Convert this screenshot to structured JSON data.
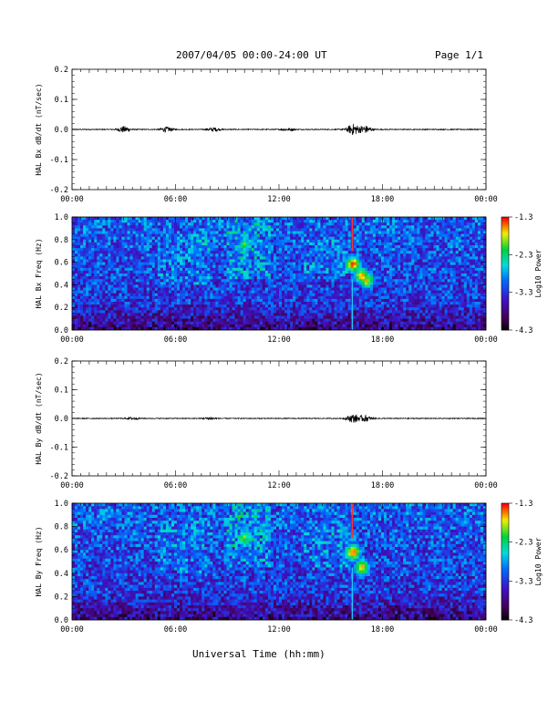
{
  "header": {
    "title": "2007/04/05  00:00-24:00 UT",
    "page": "Page 1/1"
  },
  "footer": {
    "xlabel": "Universal Time (hh:mm)"
  },
  "chart_data": [
    {
      "type": "line",
      "ylabel": "HAL Bx dB/dt (nT/sec)",
      "ylim": [
        -0.2,
        0.2
      ],
      "yticks": [
        "0.2",
        "0.1",
        "0.0",
        "-0.1",
        "-0.2"
      ],
      "xticks": [
        "00:00",
        "06:00",
        "12:00",
        "18:00",
        "00:00"
      ],
      "baseline": 0.0,
      "bursts": [
        {
          "t": 3.0,
          "amp": 0.01
        },
        {
          "t": 5.5,
          "amp": 0.008
        },
        {
          "t": 8.2,
          "amp": 0.006
        },
        {
          "t": 12.5,
          "amp": 0.004
        },
        {
          "t": 16.3,
          "amp": 0.018
        },
        {
          "t": 17.0,
          "amp": 0.012
        }
      ]
    },
    {
      "type": "heatmap",
      "ylabel": "HAL Bx Freq (Hz)",
      "ylim": [
        0.0,
        1.0
      ],
      "yticks": [
        "1.0",
        "0.8",
        "0.6",
        "0.4",
        "0.2",
        "0.0"
      ],
      "xticks": [
        "00:00",
        "06:00",
        "12:00",
        "18:00",
        "00:00"
      ],
      "colorbar": {
        "label": "Log10 Power",
        "ticks": [
          "-1.3",
          "-2.3",
          "-3.3",
          "-4.3"
        ],
        "range": [
          -4.3,
          -1.3
        ]
      },
      "features": [
        {
          "t": 16.3,
          "f": 0.58,
          "power": -1.4
        },
        {
          "t": 16.8,
          "f": 0.48,
          "power": -1.6
        },
        {
          "t": 17.1,
          "f": 0.44,
          "power": -1.7
        },
        {
          "t": 10.0,
          "f": 0.75,
          "power": -2.4
        },
        {
          "t": 7.0,
          "f": 0.7,
          "power": -2.9
        }
      ]
    },
    {
      "type": "line",
      "ylabel": "HAL By dB/dt (nT/sec)",
      "ylim": [
        -0.2,
        0.2
      ],
      "yticks": [
        "0.2",
        "0.1",
        "0.0",
        "-0.1",
        "-0.2"
      ],
      "xticks": [
        "00:00",
        "06:00",
        "12:00",
        "18:00",
        "00:00"
      ],
      "baseline": 0.0,
      "bursts": [
        {
          "t": 3.5,
          "amp": 0.004
        },
        {
          "t": 8.0,
          "amp": 0.004
        },
        {
          "t": 16.3,
          "amp": 0.014
        },
        {
          "t": 17.0,
          "amp": 0.01
        }
      ]
    },
    {
      "type": "heatmap",
      "ylabel": "HAL By Freq (Hz)",
      "ylim": [
        0.0,
        1.0
      ],
      "yticks": [
        "1.0",
        "0.8",
        "0.6",
        "0.4",
        "0.2",
        "0.0"
      ],
      "xticks": [
        "00:00",
        "06:00",
        "12:00",
        "18:00",
        "00:00"
      ],
      "colorbar": {
        "label": "Log10 Power",
        "ticks": [
          "-1.3",
          "-2.3",
          "-3.3",
          "-4.3"
        ],
        "range": [
          -4.3,
          -1.3
        ]
      },
      "features": [
        {
          "t": 16.3,
          "f": 0.58,
          "power": -1.4
        },
        {
          "t": 16.8,
          "f": 0.45,
          "power": -1.6
        },
        {
          "t": 10.0,
          "f": 0.7,
          "power": -2.3
        },
        {
          "t": 7.0,
          "f": 0.7,
          "power": -2.9
        }
      ]
    }
  ]
}
